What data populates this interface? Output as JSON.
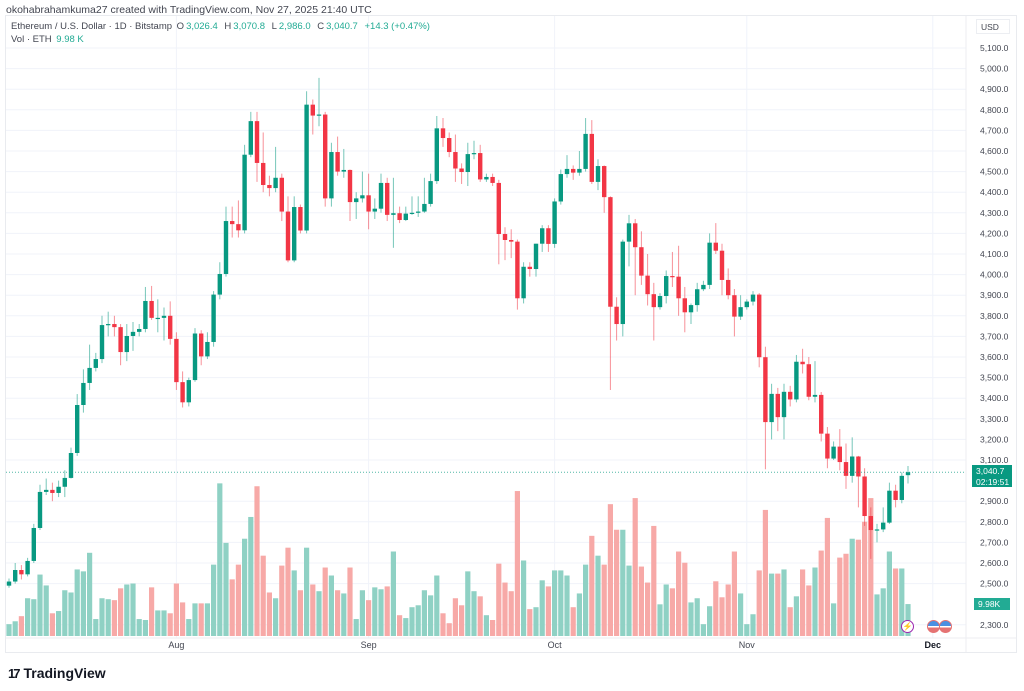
{
  "credit": "okohabrahamkuma27 created with TradingView.com, Nov 27, 2025 21:40 UTC",
  "legend": {
    "symbol": "Ethereum / U.S. Dollar · 1D · Bitstamp",
    "o_label": "O",
    "o": "3,026.4",
    "h_label": "H",
    "h": "3,070.8",
    "l_label": "L",
    "l": "2,986.0",
    "c_label": "C",
    "c": "3,040.7",
    "change": "+14.3 (+0.47%)",
    "vol_label": "Vol · ETH",
    "vol": "9.98 K"
  },
  "currency": "USD",
  "price_tag": {
    "price": "3,040.7",
    "countdown": "02:19:51"
  },
  "volume_tag": "9.98K",
  "brand": "TradingView",
  "colors": {
    "up": "#089981",
    "down": "#f23645",
    "vol_up": "#8fd1c4",
    "vol_down": "#f7a9a7",
    "grid": "#f0f3fa",
    "event": "#9c27b0"
  },
  "icons": {
    "event": "lightning-event-icon",
    "flags": [
      "us-flag-icon",
      "us-flag-icon"
    ]
  },
  "chart_data": {
    "type": "candlestick",
    "interval": "1D",
    "title": "Ethereum / U.S. Dollar · 1D · Bitstamp",
    "ylabel": "USD",
    "ylim": [
      2250,
      5150
    ],
    "grid": true,
    "y_ticks": [
      "5,100.0",
      "5,000.0",
      "4,900.0",
      "4,800.0",
      "4,700.0",
      "4,600.0",
      "4,500.0",
      "4,400.0",
      "4,300.0",
      "4,200.0",
      "4,100.0",
      "4,000.0",
      "3,900.0",
      "3,800.0",
      "3,700.0",
      "3,600.0",
      "3,500.0",
      "3,400.0",
      "3,300.0",
      "3,200.0",
      "3,100.0",
      "2,900.0",
      "2,800.0",
      "2,700.0",
      "2,600.0",
      "2,500.0",
      "2,300.0"
    ],
    "x_ticks": [
      {
        "label": "Aug",
        "date": "2025-08-01"
      },
      {
        "label": "Sep",
        "date": "2025-09-01"
      },
      {
        "label": "Oct",
        "date": "2025-10-01"
      },
      {
        "label": "Nov",
        "date": "2025-11-01"
      },
      {
        "label": "Dec",
        "date": "2025-12-01"
      }
    ],
    "volume_unit": "K ETH",
    "columns": [
      "date",
      "open",
      "high",
      "low",
      "close",
      "volume"
    ],
    "candles": [
      [
        "2025-07-05",
        2490,
        2525,
        2480,
        2510,
        3.7
      ],
      [
        "2025-07-06",
        2510,
        2600,
        2500,
        2566,
        4.6
      ],
      [
        "2025-07-07",
        2566,
        2590,
        2520,
        2545,
        6.2
      ],
      [
        "2025-07-08",
        2545,
        2625,
        2535,
        2610,
        11.8
      ],
      [
        "2025-07-09",
        2610,
        2790,
        2600,
        2770,
        11.5
      ],
      [
        "2025-07-10",
        2770,
        2980,
        2760,
        2945,
        19.2
      ],
      [
        "2025-07-11",
        2945,
        3010,
        2930,
        2955,
        15.8
      ],
      [
        "2025-07-12",
        2955,
        2990,
        2900,
        2940,
        7.1
      ],
      [
        "2025-07-13",
        2940,
        3000,
        2920,
        2970,
        7.8
      ],
      [
        "2025-07-14",
        2970,
        3050,
        2920,
        3013,
        14.3
      ],
      [
        "2025-07-15",
        3013,
        3160,
        3010,
        3134,
        13.6
      ],
      [
        "2025-07-16",
        3134,
        3420,
        3120,
        3367,
        20.8
      ],
      [
        "2025-07-17",
        3367,
        3540,
        3330,
        3474,
        20.2
      ],
      [
        "2025-07-18",
        3474,
        3660,
        3440,
        3547,
        26
      ],
      [
        "2025-07-19",
        3547,
        3620,
        3530,
        3590,
        5.3
      ],
      [
        "2025-07-20",
        3590,
        3800,
        3570,
        3755,
        11.8
      ],
      [
        "2025-07-21",
        3755,
        3820,
        3700,
        3760,
        11.5
      ],
      [
        "2025-07-22",
        3760,
        3800,
        3700,
        3745,
        11.2
      ],
      [
        "2025-07-23",
        3745,
        3760,
        3560,
        3624,
        14.9
      ],
      [
        "2025-07-24",
        3624,
        3760,
        3580,
        3702,
        16.1
      ],
      [
        "2025-07-25",
        3702,
        3770,
        3630,
        3722,
        16.4
      ],
      [
        "2025-07-26",
        3722,
        3760,
        3700,
        3736,
        5.3
      ],
      [
        "2025-07-27",
        3736,
        3940,
        3720,
        3872,
        5
      ],
      [
        "2025-07-28",
        3872,
        3945,
        3780,
        3790,
        15.2
      ],
      [
        "2025-07-29",
        3790,
        3880,
        3720,
        3790,
        8
      ],
      [
        "2025-07-30",
        3790,
        3840,
        3680,
        3800,
        8
      ],
      [
        "2025-07-31",
        3800,
        3870,
        3660,
        3688,
        7.1
      ],
      [
        "2025-08-01",
        3688,
        3720,
        3440,
        3478,
        16.4
      ],
      [
        "2025-08-02",
        3478,
        3530,
        3355,
        3380,
        10.5
      ],
      [
        "2025-08-03",
        3380,
        3500,
        3360,
        3488,
        5.3
      ],
      [
        "2025-08-04",
        3488,
        3740,
        3480,
        3714,
        10.2
      ],
      [
        "2025-08-05",
        3714,
        3730,
        3560,
        3603,
        10.2
      ],
      [
        "2025-08-06",
        3603,
        3720,
        3590,
        3673,
        10.2
      ],
      [
        "2025-08-07",
        3673,
        3920,
        3650,
        3903,
        22.3
      ],
      [
        "2025-08-08",
        3903,
        4060,
        3880,
        4003,
        47.7
      ],
      [
        "2025-08-09",
        4003,
        4330,
        3990,
        4260,
        29.1
      ],
      [
        "2025-08-10",
        4260,
        4330,
        4180,
        4245,
        17.7
      ],
      [
        "2025-08-11",
        4245,
        4360,
        4180,
        4215,
        22.3
      ],
      [
        "2025-08-12",
        4215,
        4630,
        4200,
        4582,
        30.4
      ],
      [
        "2025-08-13",
        4582,
        4790,
        4570,
        4745,
        37.2
      ],
      [
        "2025-08-14",
        4745,
        4790,
        4450,
        4542,
        46.8
      ],
      [
        "2025-08-15",
        4542,
        4690,
        4400,
        4435,
        25.1
      ],
      [
        "2025-08-16",
        4435,
        4480,
        4380,
        4420,
        13.6
      ],
      [
        "2025-08-17",
        4420,
        4620,
        4400,
        4470,
        11.8
      ],
      [
        "2025-08-18",
        4470,
        4490,
        4260,
        4306,
        22
      ],
      [
        "2025-08-19",
        4306,
        4380,
        4060,
        4069,
        27.6
      ],
      [
        "2025-08-20",
        4069,
        4380,
        4060,
        4328,
        20.5
      ],
      [
        "2025-08-21",
        4328,
        4340,
        4200,
        4214,
        14.3
      ],
      [
        "2025-08-22",
        4214,
        4890,
        4200,
        4825,
        27.6
      ],
      [
        "2025-08-23",
        4825,
        4850,
        4680,
        4772,
        16.1
      ],
      [
        "2025-08-24",
        4772,
        4955,
        4720,
        4777,
        14
      ],
      [
        "2025-08-25",
        4777,
        4790,
        4330,
        4370,
        21.4
      ],
      [
        "2025-08-26",
        4370,
        4640,
        4330,
        4595,
        18.9
      ],
      [
        "2025-08-27",
        4595,
        4670,
        4480,
        4500,
        14.3
      ],
      [
        "2025-08-28",
        4500,
        4610,
        4470,
        4508,
        13.3
      ],
      [
        "2025-08-29",
        4508,
        4510,
        4260,
        4352,
        21.4
      ],
      [
        "2025-08-30",
        4352,
        4400,
        4270,
        4370,
        5.3
      ],
      [
        "2025-08-31",
        4370,
        4500,
        4350,
        4385,
        14.3
      ],
      [
        "2025-09-01",
        4385,
        4490,
        4220,
        4306,
        11.2
      ],
      [
        "2025-09-02",
        4306,
        4370,
        4270,
        4320,
        15.2
      ],
      [
        "2025-09-03",
        4320,
        4490,
        4300,
        4445,
        14.6
      ],
      [
        "2025-09-04",
        4445,
        4470,
        4260,
        4290,
        15.5
      ],
      [
        "2025-09-05",
        4290,
        4470,
        4130,
        4298,
        26.4
      ],
      [
        "2025-09-06",
        4298,
        4330,
        4250,
        4265,
        6.5
      ],
      [
        "2025-09-07",
        4265,
        4330,
        4260,
        4296,
        5.6
      ],
      [
        "2025-09-08",
        4296,
        4380,
        4290,
        4300,
        9
      ],
      [
        "2025-09-09",
        4300,
        4380,
        4280,
        4306,
        9.6
      ],
      [
        "2025-09-10",
        4306,
        4470,
        4300,
        4343,
        14.3
      ],
      [
        "2025-09-11",
        4343,
        4490,
        4330,
        4454,
        12.7
      ],
      [
        "2025-09-12",
        4454,
        4770,
        4440,
        4710,
        18.9
      ],
      [
        "2025-09-13",
        4710,
        4760,
        4620,
        4663,
        7.1
      ],
      [
        "2025-09-14",
        4663,
        4690,
        4570,
        4595,
        4
      ],
      [
        "2025-09-15",
        4595,
        4680,
        4450,
        4515,
        11.8
      ],
      [
        "2025-09-16",
        4515,
        4540,
        4440,
        4498,
        9.6
      ],
      [
        "2025-09-17",
        4498,
        4640,
        4430,
        4585,
        20.2
      ],
      [
        "2025-09-18",
        4585,
        4650,
        4560,
        4590,
        14
      ],
      [
        "2025-09-19",
        4590,
        4630,
        4450,
        4462,
        12.4
      ],
      [
        "2025-09-20",
        4462,
        4490,
        4450,
        4474,
        6.5
      ],
      [
        "2025-09-21",
        4474,
        4490,
        4430,
        4445,
        5
      ],
      [
        "2025-09-22",
        4445,
        4460,
        4050,
        4197,
        22.6
      ],
      [
        "2025-09-23",
        4197,
        4230,
        4070,
        4168,
        16.7
      ],
      [
        "2025-09-24",
        4168,
        4220,
        4080,
        4160,
        14
      ],
      [
        "2025-09-25",
        4160,
        4170,
        3830,
        3885,
        45.3
      ],
      [
        "2025-09-26",
        3885,
        4060,
        3860,
        4038,
        23.6
      ],
      [
        "2025-09-27",
        4038,
        4060,
        3990,
        4027,
        8.4
      ],
      [
        "2025-09-28",
        4027,
        4150,
        3990,
        4150,
        9
      ],
      [
        "2025-09-29",
        4150,
        4240,
        4110,
        4225,
        17.4
      ],
      [
        "2025-09-30",
        4225,
        4240,
        4110,
        4149,
        15.5
      ],
      [
        "2025-10-01",
        4149,
        4370,
        4130,
        4355,
        20.5
      ],
      [
        "2025-10-02",
        4355,
        4510,
        4340,
        4488,
        20.5
      ],
      [
        "2025-10-03",
        4488,
        4580,
        4470,
        4513,
        18.9
      ],
      [
        "2025-10-04",
        4513,
        4530,
        4460,
        4495,
        9
      ],
      [
        "2025-10-05",
        4495,
        4600,
        4480,
        4513,
        13.3
      ],
      [
        "2025-10-06",
        4513,
        4760,
        4500,
        4683,
        22.3
      ],
      [
        "2025-10-07",
        4683,
        4750,
        4440,
        4450,
        31.3
      ],
      [
        "2025-10-08",
        4450,
        4560,
        4410,
        4527,
        25.1
      ],
      [
        "2025-10-09",
        4527,
        4530,
        4300,
        4376,
        22.3
      ],
      [
        "2025-10-10",
        4376,
        4380,
        3440,
        3844,
        41.2
      ],
      [
        "2025-10-11",
        3844,
        3890,
        3680,
        3760,
        33.2
      ],
      [
        "2025-10-12",
        3760,
        4170,
        3700,
        4160,
        33.2
      ],
      [
        "2025-10-13",
        4160,
        4290,
        4040,
        4249,
        22
      ],
      [
        "2025-10-14",
        4249,
        4270,
        3900,
        4133,
        43.1
      ],
      [
        "2025-10-15",
        4133,
        4210,
        3950,
        3995,
        21.7
      ],
      [
        "2025-10-16",
        3995,
        4100,
        3850,
        3905,
        16.7
      ],
      [
        "2025-10-17",
        3905,
        3960,
        3680,
        3842,
        34.4
      ],
      [
        "2025-10-18",
        3842,
        3910,
        3830,
        3896,
        9.9
      ],
      [
        "2025-10-19",
        3896,
        4020,
        3860,
        3993,
        16.1
      ],
      [
        "2025-10-20",
        3993,
        4110,
        3940,
        3990,
        14.9
      ],
      [
        "2025-10-21",
        3990,
        4140,
        3800,
        3885,
        26.4
      ],
      [
        "2025-10-22",
        3885,
        3940,
        3720,
        3817,
        22.9
      ],
      [
        "2025-10-23",
        3817,
        3860,
        3760,
        3852,
        10.5
      ],
      [
        "2025-10-24",
        3852,
        3960,
        3820,
        3929,
        11.8
      ],
      [
        "2025-10-25",
        3929,
        3970,
        3920,
        3950,
        3.7
      ],
      [
        "2025-10-26",
        3950,
        4200,
        3930,
        4155,
        9.3
      ],
      [
        "2025-10-27",
        4155,
        4250,
        4100,
        4116,
        17.1
      ],
      [
        "2025-10-28",
        4116,
        4150,
        3900,
        3974,
        12.1
      ],
      [
        "2025-10-29",
        3974,
        4030,
        3880,
        3900,
        16.1
      ],
      [
        "2025-10-30",
        3900,
        3930,
        3700,
        3796,
        26.4
      ],
      [
        "2025-10-31",
        3796,
        3900,
        3780,
        3842,
        13.3
      ],
      [
        "2025-11-01",
        3842,
        3880,
        3830,
        3869,
        3.7
      ],
      [
        "2025-11-02",
        3869,
        3920,
        3850,
        3903,
        6.8
      ],
      [
        "2025-11-03",
        3903,
        3910,
        3550,
        3599,
        20.5
      ],
      [
        "2025-11-04",
        3599,
        3650,
        3055,
        3284,
        39.4
      ],
      [
        "2025-11-05",
        3284,
        3470,
        3200,
        3421,
        19.5
      ],
      [
        "2025-11-06",
        3421,
        3450,
        3240,
        3308,
        19.5
      ],
      [
        "2025-11-07",
        3308,
        3470,
        3200,
        3431,
        20.8
      ],
      [
        "2025-11-08",
        3431,
        3460,
        3360,
        3394,
        9
      ],
      [
        "2025-11-09",
        3394,
        3610,
        3380,
        3577,
        12.4
      ],
      [
        "2025-11-10",
        3577,
        3640,
        3520,
        3565,
        20.8
      ],
      [
        "2025-11-11",
        3565,
        3600,
        3390,
        3407,
        15.8
      ],
      [
        "2025-11-12",
        3407,
        3580,
        3380,
        3416,
        21.4
      ],
      [
        "2025-11-13",
        3416,
        3430,
        3190,
        3228,
        26.7
      ],
      [
        "2025-11-14",
        3228,
        3260,
        3060,
        3107,
        36.9
      ],
      [
        "2025-11-15",
        3107,
        3190,
        3100,
        3165,
        10.2
      ],
      [
        "2025-11-16",
        3165,
        3250,
        3050,
        3090,
        24.5
      ],
      [
        "2025-11-17",
        3090,
        3180,
        2960,
        3023,
        25.7
      ],
      [
        "2025-11-18",
        3023,
        3210,
        2990,
        3117,
        30.4
      ],
      [
        "2025-11-19",
        3117,
        3120,
        2870,
        3020,
        30.1
      ],
      [
        "2025-11-20",
        3020,
        3060,
        2780,
        2828,
        35.7
      ],
      [
        "2025-11-21",
        2828,
        2870,
        2620,
        2760,
        43.1
      ],
      [
        "2025-11-22",
        2760,
        2790,
        2700,
        2763,
        13
      ],
      [
        "2025-11-23",
        2763,
        2870,
        2750,
        2796,
        14.9
      ],
      [
        "2025-11-24",
        2796,
        2990,
        2790,
        2951,
        26.4
      ],
      [
        "2025-11-25",
        2951,
        2980,
        2870,
        2906,
        21.1
      ],
      [
        "2025-11-26",
        2906,
        3040,
        2890,
        3023,
        21.1
      ],
      [
        "2025-11-27",
        3026.4,
        3070.8,
        2986.0,
        3040.7,
        9.98
      ]
    ],
    "last_price": 3040.7
  }
}
